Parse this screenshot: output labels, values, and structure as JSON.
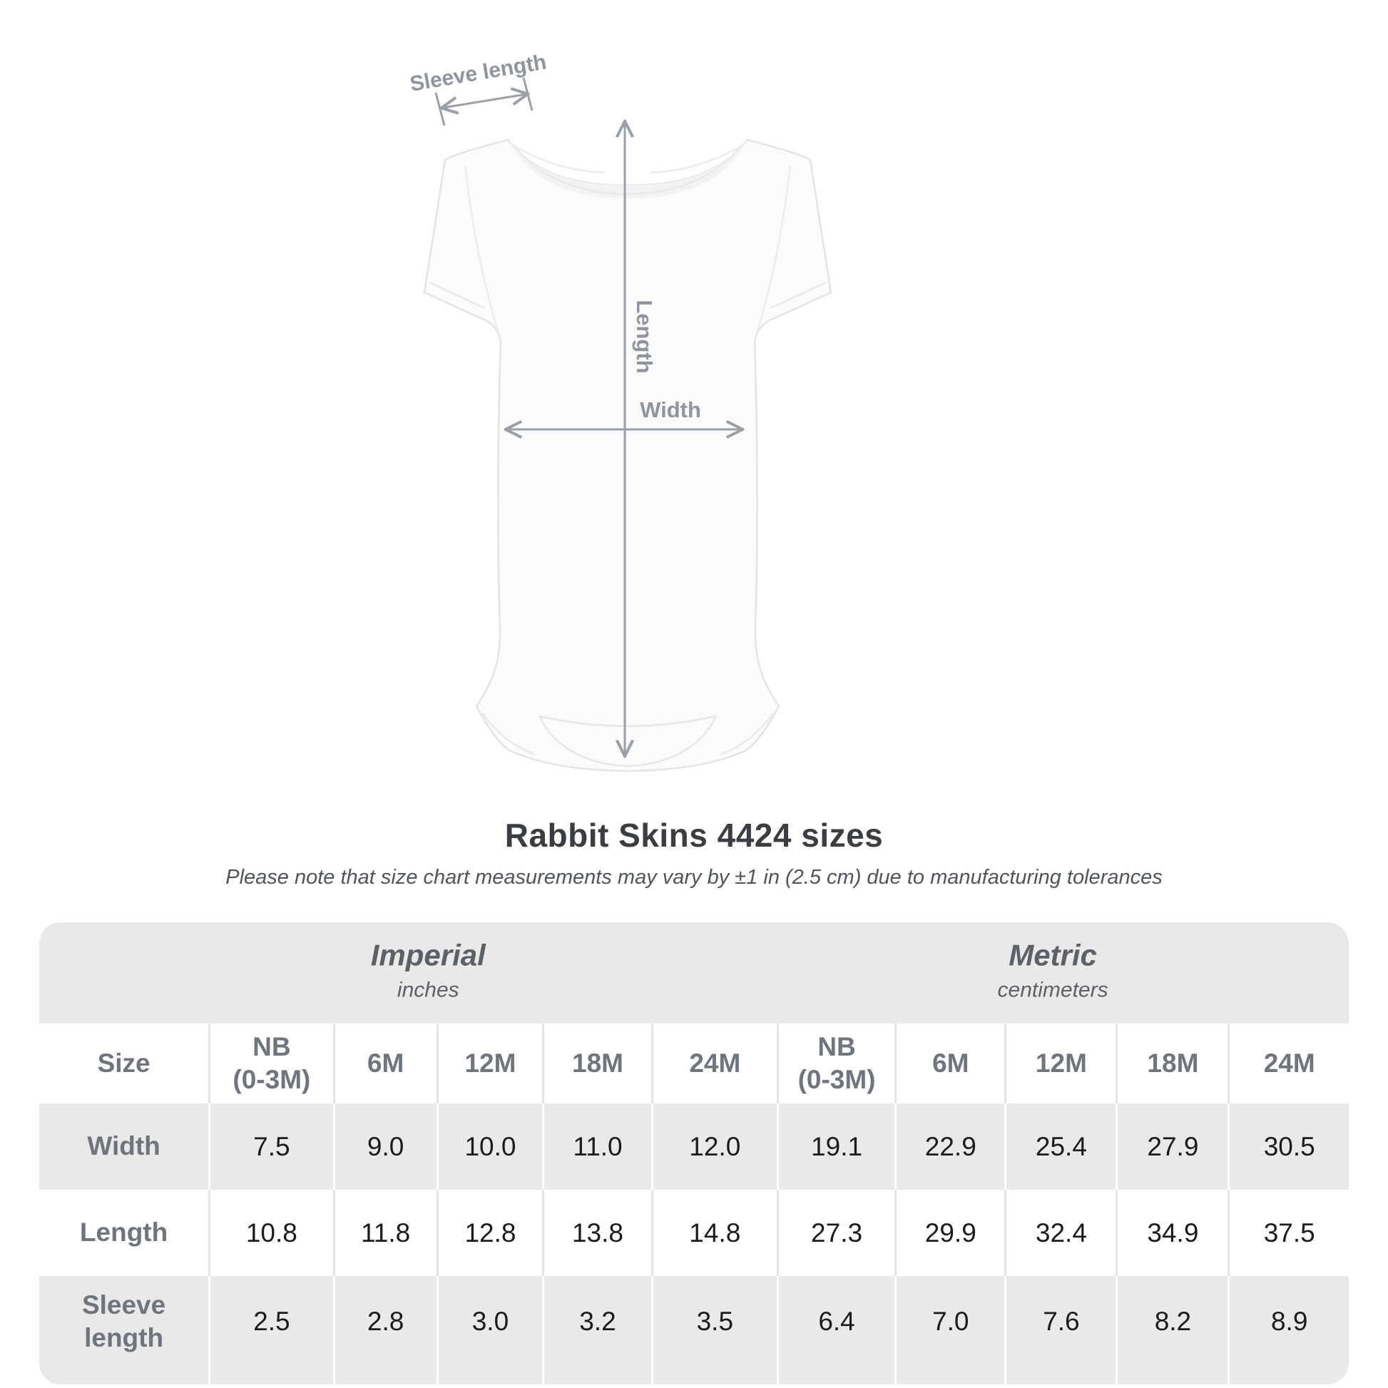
{
  "title": "Rabbit Skins 4424 sizes",
  "subtitle": "Please note that size chart measurements may vary by ±1 in (2.5 cm) due to manufacturing tolerances",
  "illustration": {
    "labels": {
      "sleeve_length": "Sleeve length",
      "length": "Length",
      "width": "Width"
    },
    "annotation_color": "#9ba0a4",
    "garment_fill": "#fbfbfc",
    "garment_stroke": "#e3e4e6"
  },
  "table": {
    "corner_label": "Size",
    "band_color": "#e9e9ea",
    "header_text_color": "#6f757a",
    "value_text_color": "#1b1b1d",
    "unit_groups": [
      {
        "label": "Imperial",
        "sublabel": "inches"
      },
      {
        "label": "Metric",
        "sublabel": "centimeters"
      }
    ],
    "columns": [
      {
        "label": "NB",
        "sublabel": "(0-3M)"
      },
      {
        "label": "6M"
      },
      {
        "label": "12M"
      },
      {
        "label": "18M"
      },
      {
        "label": "24M"
      },
      {
        "label": "NB",
        "sublabel": "(0-3M)"
      },
      {
        "label": "6M"
      },
      {
        "label": "12M"
      },
      {
        "label": "18M"
      },
      {
        "label": "24M"
      }
    ],
    "rows": [
      {
        "label": "Width",
        "values": [
          "7.5",
          "9.0",
          "10.0",
          "11.0",
          "12.0",
          "19.1",
          "22.9",
          "25.4",
          "27.9",
          "30.5"
        ]
      },
      {
        "label": "Length",
        "values": [
          "10.8",
          "11.8",
          "12.8",
          "13.8",
          "14.8",
          "27.3",
          "29.9",
          "32.4",
          "34.9",
          "37.5"
        ]
      },
      {
        "label": "Sleeve length",
        "values": [
          "2.5",
          "2.8",
          "3.0",
          "3.2",
          "3.5",
          "6.4",
          "7.0",
          "7.6",
          "8.2",
          "8.9"
        ]
      }
    ]
  },
  "chart_data": {
    "type": "table",
    "title": "Rabbit Skins 4424 sizes",
    "note": "Please note that size chart measurements may vary by ±1 in (2.5 cm) due to manufacturing tolerances",
    "unit_groups": [
      "Imperial (inches)",
      "Metric (centimeters)"
    ],
    "categories": [
      "NB (0-3M)",
      "6M",
      "12M",
      "18M",
      "24M"
    ],
    "series": [
      {
        "name": "Width (in)",
        "values": [
          7.5,
          9.0,
          10.0,
          11.0,
          12.0
        ]
      },
      {
        "name": "Length (in)",
        "values": [
          10.8,
          11.8,
          12.8,
          13.8,
          14.8
        ]
      },
      {
        "name": "Sleeve length (in)",
        "values": [
          2.5,
          2.8,
          3.0,
          3.2,
          3.5
        ]
      },
      {
        "name": "Width (cm)",
        "values": [
          19.1,
          22.9,
          25.4,
          27.9,
          30.5
        ]
      },
      {
        "name": "Length (cm)",
        "values": [
          27.3,
          29.9,
          32.4,
          34.9,
          37.5
        ]
      },
      {
        "name": "Sleeve length (cm)",
        "values": [
          6.4,
          7.0,
          7.6,
          8.2,
          8.9
        ]
      }
    ]
  }
}
